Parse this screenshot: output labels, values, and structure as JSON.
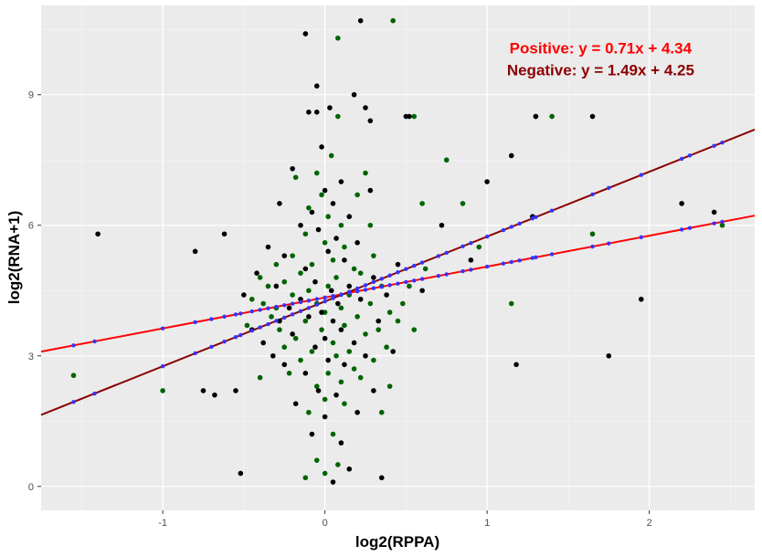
{
  "chart_data": {
    "type": "scatter",
    "title": "",
    "xlabel": "log2(RPPA)",
    "ylabel": "log2(RNA+1)",
    "xlim": [
      -1.75,
      2.65
    ],
    "ylim": [
      -0.55,
      11.05
    ],
    "x_ticks": [
      -1,
      0,
      1,
      2
    ],
    "x_tick_labels": [
      "-1",
      "0",
      "1",
      "2"
    ],
    "y_ticks": [
      0,
      3,
      6,
      9
    ],
    "y_tick_labels": [
      "0",
      "3",
      "6",
      "9"
    ],
    "grid": true,
    "background": "#ebebeb",
    "annotations": [
      {
        "text": "Positive: y = 0.71x + 4.34",
        "color": "#ff0000",
        "x": 1.7,
        "y": 9.95
      },
      {
        "text": "Negative: y = 1.49x + 4.25",
        "color": "#8b0000",
        "x": 1.7,
        "y": 9.45
      }
    ],
    "series": [
      {
        "color": "#006400",
        "points": [
          [
            -1.55,
            2.55
          ],
          [
            -1.0,
            2.2
          ],
          [
            -0.48,
            3.7
          ],
          [
            -0.45,
            4.3
          ],
          [
            -0.4,
            4.8
          ],
          [
            -0.38,
            4.2
          ],
          [
            -0.35,
            4.6
          ],
          [
            -0.33,
            3.9
          ],
          [
            -0.3,
            4.1
          ],
          [
            -0.3,
            5.1
          ],
          [
            -0.28,
            3.6
          ],
          [
            -0.25,
            4.7
          ],
          [
            -0.25,
            3.2
          ],
          [
            -0.22,
            2.6
          ],
          [
            -0.2,
            5.3
          ],
          [
            -0.2,
            4.4
          ],
          [
            -0.18,
            3.4
          ],
          [
            -0.18,
            7.1
          ],
          [
            -0.15,
            4.9
          ],
          [
            -0.15,
            2.9
          ],
          [
            -0.12,
            5.8
          ],
          [
            -0.12,
            3.8
          ],
          [
            -0.12,
            0.2
          ],
          [
            -0.1,
            6.4
          ],
          [
            -0.1,
            4.5
          ],
          [
            -0.1,
            1.7
          ],
          [
            -0.08,
            5.1
          ],
          [
            -0.08,
            3.1
          ],
          [
            -0.05,
            7.2
          ],
          [
            -0.05,
            4.2
          ],
          [
            -0.05,
            2.3
          ],
          [
            -0.05,
            0.6
          ],
          [
            -0.02,
            6.7
          ],
          [
            -0.02,
            3.6
          ],
          [
            0.0,
            5.6
          ],
          [
            0.0,
            4.0
          ],
          [
            0.0,
            2.0
          ],
          [
            0.0,
            0.3
          ],
          [
            0.02,
            6.2
          ],
          [
            0.02,
            4.6
          ],
          [
            0.02,
            2.6
          ],
          [
            0.04,
            7.6
          ],
          [
            0.05,
            5.2
          ],
          [
            0.05,
            3.3
          ],
          [
            0.05,
            1.2
          ],
          [
            0.07,
            4.8
          ],
          [
            0.07,
            3.0
          ],
          [
            0.08,
            8.5
          ],
          [
            0.08,
            0.5
          ],
          [
            0.1,
            6.0
          ],
          [
            0.1,
            4.1
          ],
          [
            0.1,
            2.4
          ],
          [
            0.12,
            5.5
          ],
          [
            0.12,
            3.7
          ],
          [
            0.12,
            1.9
          ],
          [
            0.15,
            4.4
          ],
          [
            0.15,
            3.1
          ],
          [
            0.18,
            5.0
          ],
          [
            0.18,
            2.7
          ],
          [
            0.2,
            6.7
          ],
          [
            0.2,
            3.9
          ],
          [
            0.22,
            4.9
          ],
          [
            0.22,
            2.5
          ],
          [
            0.25,
            7.2
          ],
          [
            0.25,
            3.5
          ],
          [
            0.28,
            6.0
          ],
          [
            0.28,
            4.2
          ],
          [
            0.3,
            5.3
          ],
          [
            0.3,
            2.9
          ],
          [
            0.33,
            3.6
          ],
          [
            0.35,
            4.6
          ],
          [
            0.35,
            1.7
          ],
          [
            0.38,
            3.2
          ],
          [
            0.4,
            4.0
          ],
          [
            0.4,
            2.3
          ],
          [
            0.42,
            10.7
          ],
          [
            0.45,
            3.8
          ],
          [
            0.48,
            4.2
          ],
          [
            0.52,
            4.6
          ],
          [
            0.55,
            8.5
          ],
          [
            0.55,
            3.6
          ],
          [
            0.6,
            6.5
          ],
          [
            0.62,
            5.0
          ],
          [
            0.75,
            7.5
          ],
          [
            0.85,
            6.5
          ],
          [
            0.95,
            5.5
          ],
          [
            1.15,
            4.2
          ],
          [
            1.3,
            8.5
          ],
          [
            1.4,
            8.5
          ],
          [
            1.65,
            5.8
          ],
          [
            2.45,
            6.0
          ],
          [
            0.08,
            10.3
          ],
          [
            -0.4,
            2.5
          ]
        ]
      },
      {
        "color": "#000000",
        "points": [
          [
            -1.4,
            5.8
          ],
          [
            -0.8,
            5.4
          ],
          [
            -0.75,
            2.2
          ],
          [
            -0.68,
            2.1
          ],
          [
            -0.62,
            5.8
          ],
          [
            -0.55,
            2.2
          ],
          [
            -0.52,
            0.3
          ],
          [
            -0.5,
            4.4
          ],
          [
            -0.45,
            3.6
          ],
          [
            -0.42,
            4.9
          ],
          [
            -0.38,
            3.3
          ],
          [
            -0.35,
            5.5
          ],
          [
            -0.32,
            3.0
          ],
          [
            -0.3,
            4.6
          ],
          [
            -0.28,
            6.5
          ],
          [
            -0.28,
            3.8
          ],
          [
            -0.25,
            5.3
          ],
          [
            -0.25,
            2.8
          ],
          [
            -0.22,
            4.1
          ],
          [
            -0.2,
            7.3
          ],
          [
            -0.2,
            3.5
          ],
          [
            -0.18,
            1.9
          ],
          [
            -0.15,
            6.0
          ],
          [
            -0.15,
            4.3
          ],
          [
            -0.12,
            5.0
          ],
          [
            -0.12,
            2.6
          ],
          [
            -0.1,
            8.6
          ],
          [
            -0.1,
            3.9
          ],
          [
            -0.08,
            6.3
          ],
          [
            -0.08,
            1.2
          ],
          [
            -0.06,
            4.7
          ],
          [
            -0.06,
            3.2
          ],
          [
            -0.05,
            9.2
          ],
          [
            -0.04,
            5.9
          ],
          [
            -0.04,
            2.2
          ],
          [
            -0.02,
            7.8
          ],
          [
            -0.02,
            4.0
          ],
          [
            0.0,
            6.8
          ],
          [
            0.0,
            3.4
          ],
          [
            0.0,
            1.6
          ],
          [
            0.02,
            5.4
          ],
          [
            0.02,
            2.9
          ],
          [
            0.03,
            8.7
          ],
          [
            0.04,
            4.5
          ],
          [
            0.05,
            6.5
          ],
          [
            0.05,
            3.8
          ],
          [
            0.05,
            0.1
          ],
          [
            0.07,
            5.7
          ],
          [
            0.07,
            2.1
          ],
          [
            0.08,
            4.2
          ],
          [
            0.1,
            7.0
          ],
          [
            0.1,
            3.6
          ],
          [
            0.1,
            1.0
          ],
          [
            0.12,
            5.2
          ],
          [
            0.12,
            2.8
          ],
          [
            0.15,
            6.2
          ],
          [
            0.15,
            4.6
          ],
          [
            0.15,
            0.4
          ],
          [
            0.18,
            3.3
          ],
          [
            0.2,
            5.6
          ],
          [
            0.2,
            1.7
          ],
          [
            0.22,
            10.7
          ],
          [
            0.22,
            4.3
          ],
          [
            0.25,
            8.7
          ],
          [
            0.25,
            3.0
          ],
          [
            0.28,
            6.8
          ],
          [
            0.3,
            4.8
          ],
          [
            0.3,
            2.2
          ],
          [
            0.33,
            3.8
          ],
          [
            0.35,
            0.2
          ],
          [
            0.38,
            4.4
          ],
          [
            0.42,
            3.1
          ],
          [
            0.45,
            5.1
          ],
          [
            0.5,
            8.5
          ],
          [
            0.52,
            8.5
          ],
          [
            0.6,
            4.5
          ],
          [
            0.72,
            6.0
          ],
          [
            0.9,
            5.2
          ],
          [
            1.0,
            7.0
          ],
          [
            1.15,
            7.6
          ],
          [
            1.18,
            2.8
          ],
          [
            1.28,
            6.2
          ],
          [
            1.3,
            8.5
          ],
          [
            1.65,
            8.5
          ],
          [
            1.75,
            3.0
          ],
          [
            1.95,
            4.3
          ],
          [
            2.2,
            6.5
          ],
          [
            2.4,
            6.3
          ],
          [
            -0.12,
            10.4
          ],
          [
            -0.05,
            8.6
          ],
          [
            0.18,
            9.0
          ],
          [
            0.28,
            8.4
          ]
        ]
      }
    ],
    "fit_lines": [
      {
        "name": "Positive",
        "slope": 0.71,
        "intercept": 4.34,
        "color": "#ff0000",
        "point_color": "#3333ff"
      },
      {
        "name": "Negative",
        "slope": 1.49,
        "intercept": 4.25,
        "color": "#8b0000",
        "point_color": "#3333ff"
      }
    ],
    "fit_points_x": [
      -1.55,
      -1.42,
      -1.0,
      -0.8,
      -0.7,
      -0.62,
      -0.55,
      -0.52,
      -0.45,
      -0.4,
      -0.35,
      -0.3,
      -0.25,
      -0.2,
      -0.15,
      -0.1,
      -0.05,
      0.0,
      0.05,
      0.1,
      0.15,
      0.2,
      0.25,
      0.3,
      0.35,
      0.4,
      0.45,
      0.5,
      0.55,
      0.6,
      0.7,
      0.75,
      0.85,
      0.9,
      1.0,
      1.1,
      1.15,
      1.2,
      1.28,
      1.3,
      1.4,
      1.65,
      1.75,
      1.95,
      2.2,
      2.25,
      2.4,
      2.45
    ]
  }
}
